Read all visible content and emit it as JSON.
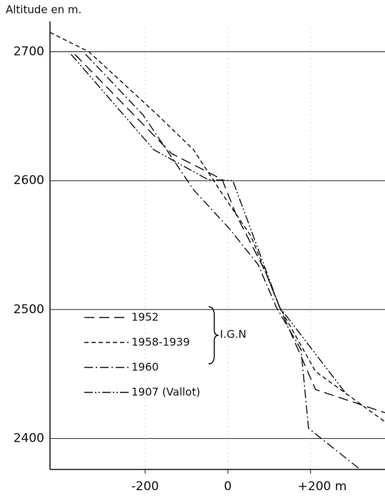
{
  "chart_data": {
    "type": "line",
    "y_label": "Altitude en m.",
    "annotation": "I.G.N",
    "xlim": [
      -430,
      380
    ],
    "ylim": [
      2376,
      2718
    ],
    "xticks": [
      -200,
      0,
      {
        "value": 200,
        "label": "+200 m"
      }
    ],
    "yticks": [
      2400,
      2500,
      2600,
      2700
    ],
    "grid": true,
    "series": [
      {
        "name": "1952",
        "color": "#111",
        "dash": "14 7",
        "x": [
          -370,
          -136,
          -14,
          21,
          90,
          125,
          212,
          380
        ],
        "values": [
          2698,
          2621,
          2601,
          2573,
          2530,
          2502,
          2438,
          2420
        ]
      },
      {
        "name": "1958-1939",
        "color": "#111",
        "dash": "6 4",
        "x": [
          -430,
          -336,
          -170,
          -83,
          -14,
          56,
          125,
          212,
          380
        ],
        "values": [
          2715,
          2700,
          2651,
          2624,
          2590,
          2557,
          2502,
          2452,
          2413
        ]
      },
      {
        "name": "1960",
        "color": "#111",
        "dash": "12 4 2 4",
        "x": [
          -344,
          -205,
          -83,
          3,
          73,
          117,
          177,
          195,
          316
        ],
        "values": [
          2698,
          2651,
          2593,
          2563,
          2535,
          2502,
          2469,
          2408,
          2377
        ]
      },
      {
        "name": "1907 (Vallot)",
        "color": "#111",
        "dash": "12 3 2 3 2 3",
        "x": [
          -379,
          -179,
          -49,
          12,
          125,
          290
        ],
        "values": [
          2698,
          2624,
          2601,
          2600,
          2502,
          2433
        ]
      }
    ]
  }
}
